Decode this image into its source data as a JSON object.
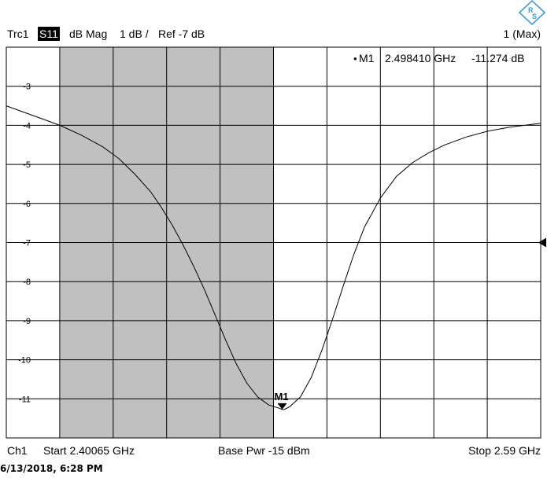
{
  "header": {
    "trace": "Trc1",
    "param": "S11",
    "format": "dB Mag",
    "scale": "1 dB /",
    "ref": "Ref -7 dB",
    "right": "1 (Max)"
  },
  "marker_readout": {
    "name": "M1",
    "freq": "2.498410 GHz",
    "value": "-11.274 dB"
  },
  "footer": {
    "channel": "Ch1",
    "start": "Start  2.40065 GHz",
    "power": "Base Pwr  -15 dBm",
    "stop": "Stop  2.59 GHz"
  },
  "timestamp": "6/13/2018, 6:28 PM",
  "logo": {
    "icon": "rohde-schwarz-logo-icon",
    "color": "#3a9fd6"
  },
  "chart_data": {
    "type": "line",
    "xlabel": "",
    "ylabel": "",
    "xlim": [
      2.40065,
      2.59
    ],
    "ylim": [
      -12,
      -2
    ],
    "x_divisions": 10,
    "ref_level": -7,
    "yticks": [
      -3,
      -4,
      -5,
      -6,
      -7,
      -8,
      -9,
      -10,
      -11
    ],
    "ytick_labels": [
      "-3",
      "-4",
      "-5",
      "-6",
      "-7",
      "-8",
      "-9",
      "-10",
      "-11"
    ],
    "shaded_region": [
      2.4196,
      2.4954
    ],
    "grid": true,
    "colors": {
      "trace": "#000000",
      "shade": "#c0c0c0",
      "grid": "#000000"
    },
    "series": [
      {
        "x": [
          2.40065,
          2.4063,
          2.4139,
          2.4196,
          2.4272,
          2.4348,
          2.4405,
          2.4462,
          2.4518,
          2.4556,
          2.4594,
          2.4632,
          2.467,
          2.4708,
          2.4746,
          2.4784,
          2.4821,
          2.4859,
          2.4897,
          2.4935,
          2.4954,
          2.4973,
          2.4984,
          2.4992,
          2.5011,
          2.5049,
          2.5087,
          2.5125,
          2.5163,
          2.5201,
          2.5238,
          2.5276,
          2.5333,
          2.539,
          2.5447,
          2.5504,
          2.556,
          2.5636,
          2.5712,
          2.5788,
          2.5864,
          2.59
        ],
        "y": [
          -3.5,
          -3.65,
          -3.85,
          -4.0,
          -4.25,
          -4.55,
          -4.85,
          -5.25,
          -5.7,
          -6.1,
          -6.55,
          -7.05,
          -7.6,
          -8.2,
          -8.85,
          -9.5,
          -10.1,
          -10.6,
          -10.95,
          -11.15,
          -11.2,
          -11.24,
          -11.274,
          -11.27,
          -11.2,
          -10.95,
          -10.45,
          -9.75,
          -8.95,
          -8.1,
          -7.3,
          -6.6,
          -5.85,
          -5.3,
          -4.95,
          -4.7,
          -4.5,
          -4.3,
          -4.15,
          -4.05,
          -3.98,
          -3.95
        ]
      }
    ],
    "markers": [
      {
        "label": "M1",
        "x": 2.49841,
        "y": -11.274
      }
    ],
    "ref_arrow_level": -7
  }
}
